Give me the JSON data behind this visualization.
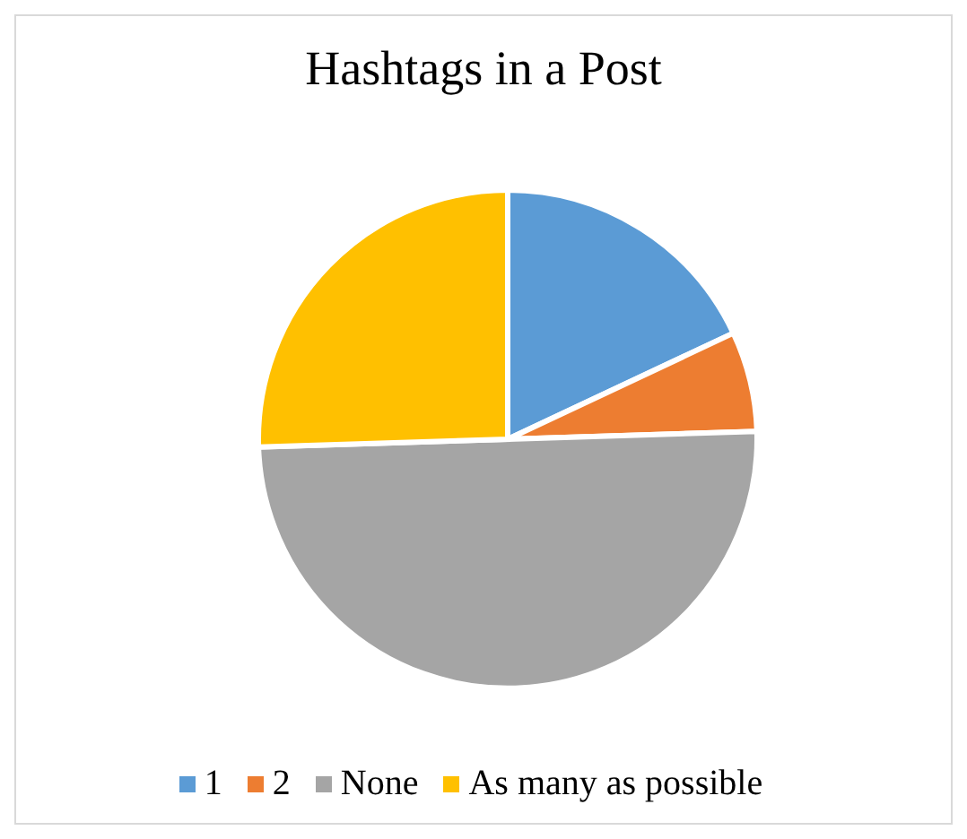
{
  "chart_data": {
    "type": "pie",
    "title": "Hashtags in a Post",
    "categories": [
      "1",
      "2",
      "None",
      "As many as possible"
    ],
    "values": [
      18,
      6.5,
      50,
      25.5
    ],
    "colors": [
      "#5b9bd5",
      "#ed7d31",
      "#a5a5a5",
      "#ffc000"
    ],
    "legend": "bottom"
  }
}
